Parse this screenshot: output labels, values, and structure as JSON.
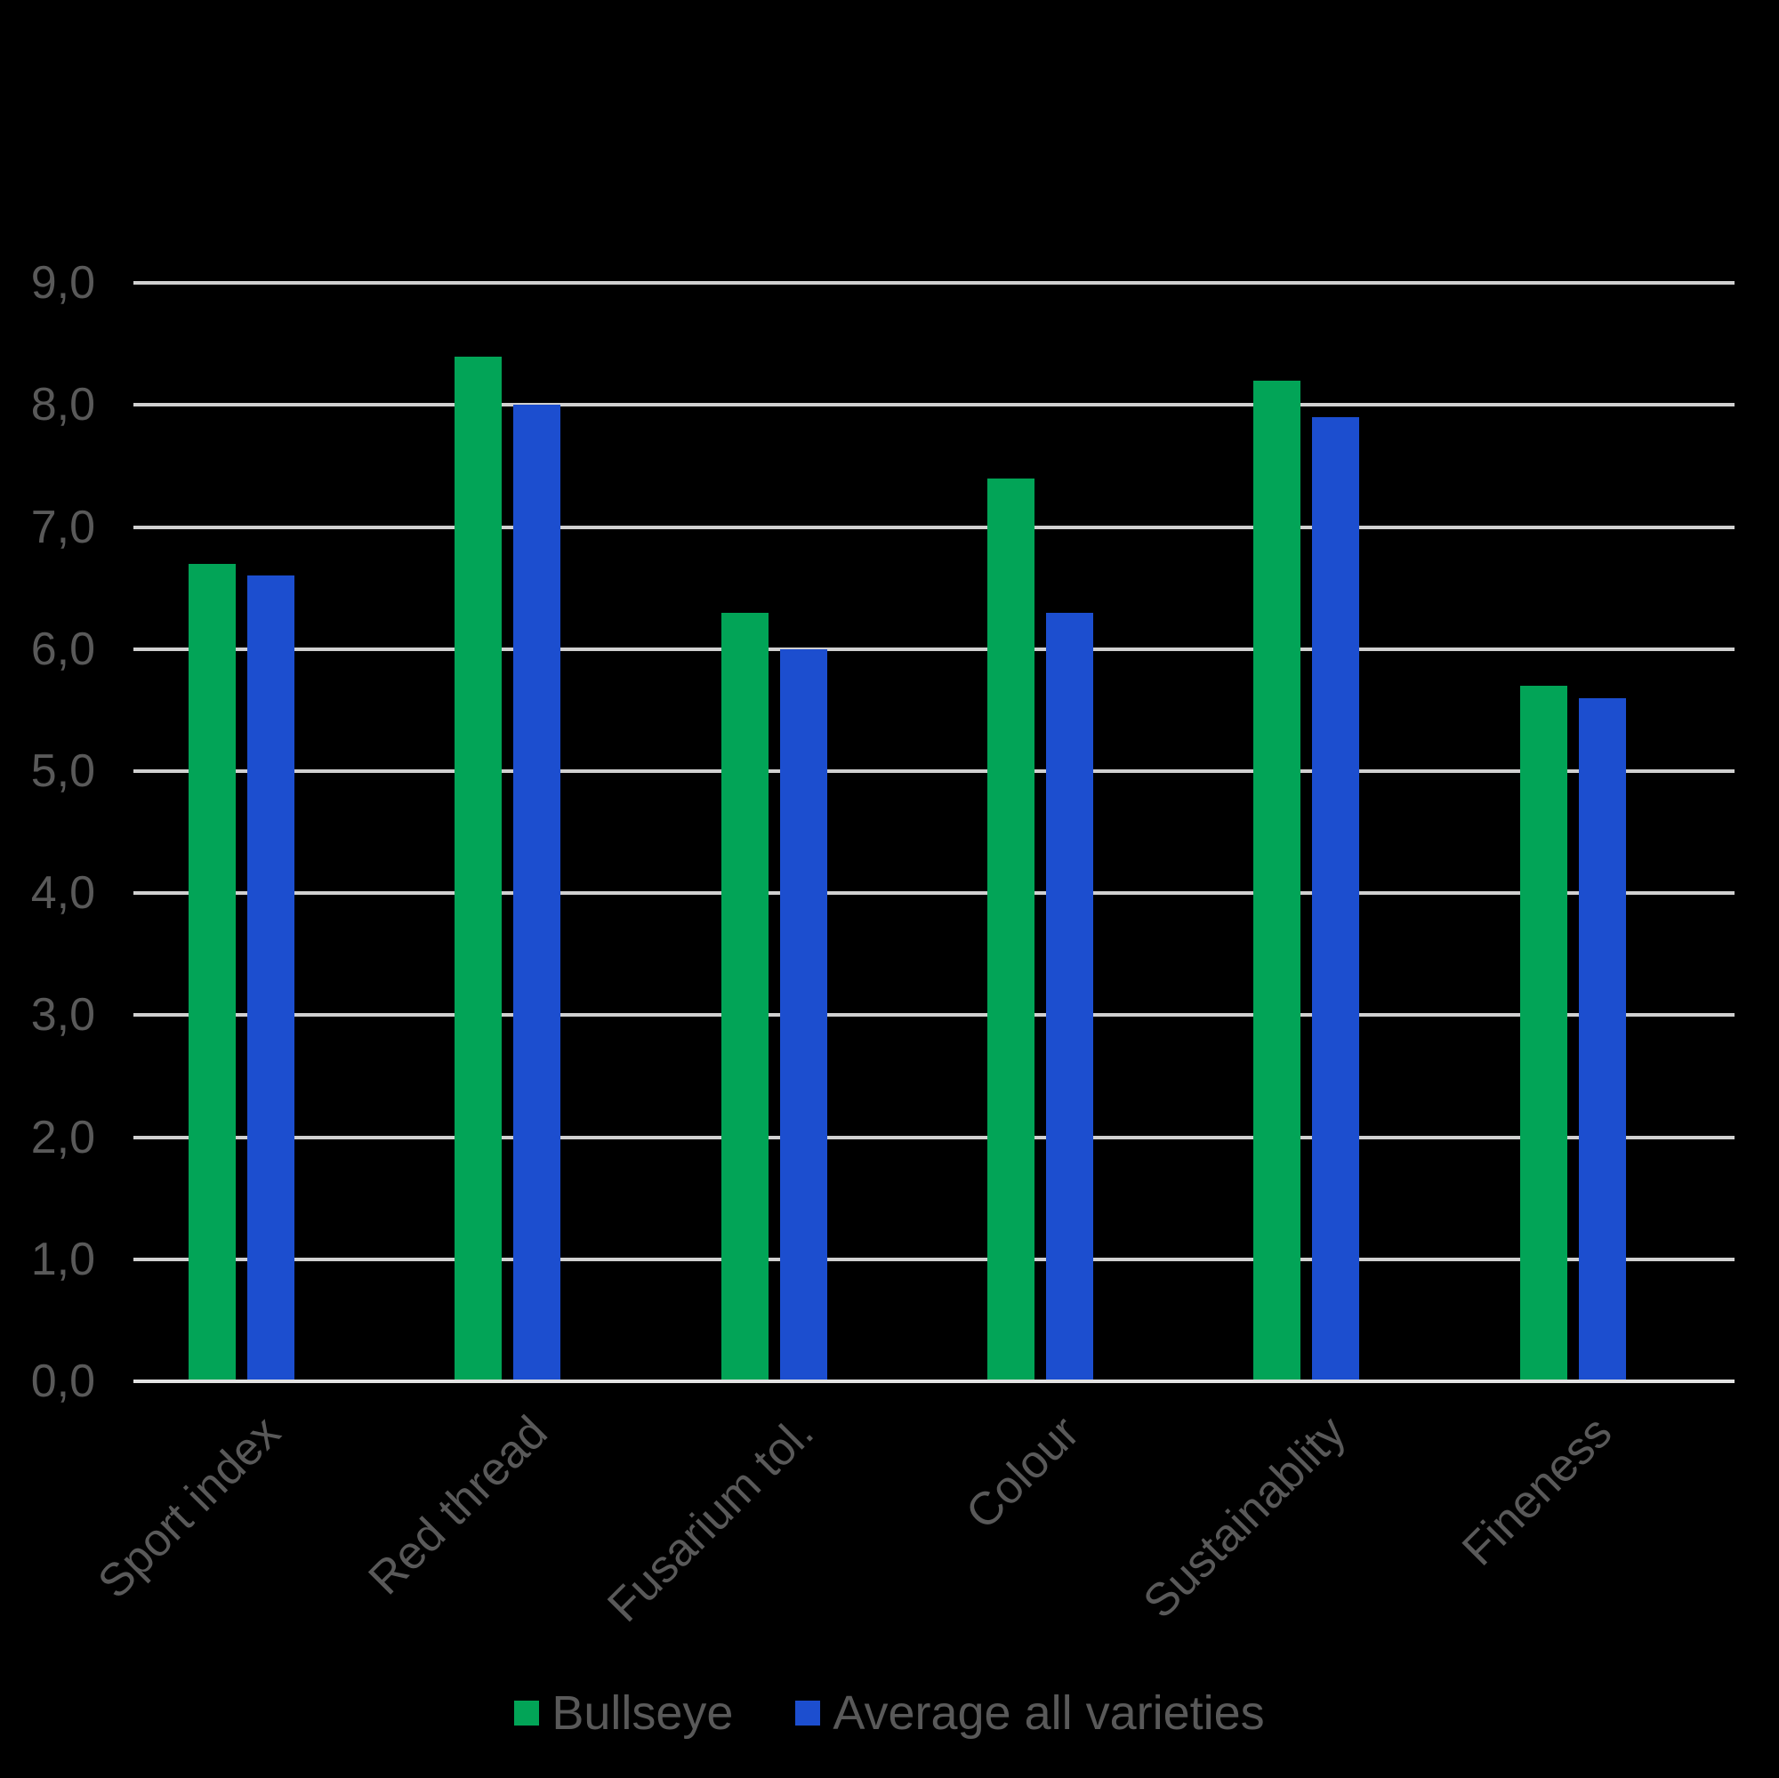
{
  "chart_data": {
    "type": "bar",
    "title": "",
    "categories": [
      "Sport index",
      "Red thread",
      "Fusarium tol.",
      "Colour",
      "Sustainablity",
      "Fineness"
    ],
    "series": [
      {
        "name": "Bullseye",
        "color": "#02A457",
        "values": [
          6.7,
          8.4,
          6.3,
          7.4,
          8.2,
          5.7
        ]
      },
      {
        "name": "Average all varieties",
        "color": "#1C4ECF",
        "values": [
          6.6,
          8.0,
          6.0,
          6.3,
          7.9,
          5.6
        ]
      }
    ],
    "ylabel": "",
    "xlabel": "",
    "ylim": [
      0,
      9
    ],
    "ytick_step": 1,
    "ytick_labels": [
      "0,0",
      "1,0",
      "2,0",
      "3,0",
      "4,0",
      "5,0",
      "6,0",
      "7,0",
      "8,0",
      "9,0"
    ],
    "grid": true,
    "legend_position": "bottom",
    "colors": {
      "background": "#000000",
      "text": "#595959",
      "gridline": "#D0D0D0",
      "axis_line": "#E3E3E3"
    }
  }
}
